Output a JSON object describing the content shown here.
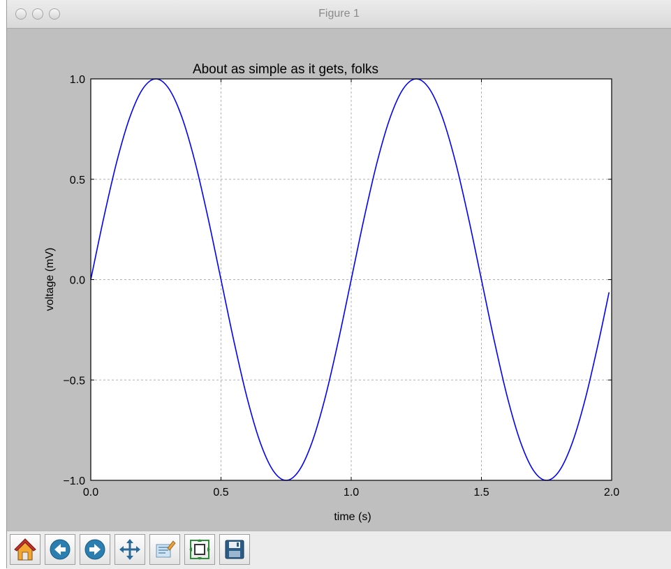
{
  "window": {
    "title": "Figure 1"
  },
  "toolbar": {
    "buttons": [
      {
        "icon": "home-icon"
      },
      {
        "icon": "back-arrow-icon"
      },
      {
        "icon": "forward-arrow-icon"
      },
      {
        "icon": "pan-move-icon"
      },
      {
        "icon": "zoom-to-rect-icon"
      },
      {
        "icon": "configure-subplots-icon"
      },
      {
        "icon": "save-figure-icon"
      }
    ]
  },
  "colors": {
    "figure_background": "#bfbfbf",
    "axes_background": "#ffffff",
    "line": "#0000ff",
    "grid": "#b0b0b0"
  },
  "chart_data": {
    "type": "line",
    "title": "About as simple as it gets, folks",
    "xlabel": "time (s)",
    "ylabel": "voltage (mV)",
    "xlim": [
      0.0,
      2.0
    ],
    "ylim": [
      -1.0,
      1.0
    ],
    "xticks": [
      "0.0",
      "0.5",
      "1.0",
      "1.5",
      "2.0"
    ],
    "yticks": [
      "1.0",
      "0.5",
      "0.0",
      "−0.5",
      "−1.0"
    ],
    "grid": true,
    "series": [
      {
        "x": [
          0.0,
          0.05,
          0.1,
          0.15,
          0.2,
          0.25,
          0.3,
          0.35,
          0.4,
          0.45,
          0.5,
          0.55,
          0.6,
          0.65,
          0.7,
          0.75,
          0.8,
          0.85,
          0.9,
          0.95,
          1.0,
          1.05,
          1.1,
          1.15,
          1.2,
          1.25,
          1.3,
          1.35,
          1.4,
          1.45,
          1.5,
          1.55,
          1.6,
          1.65,
          1.7,
          1.75,
          1.8,
          1.85,
          1.9,
          1.95,
          1.99
        ],
        "y": [
          0.0,
          0.309,
          0.588,
          0.809,
          0.951,
          1.0,
          0.951,
          0.809,
          0.588,
          0.309,
          0.0,
          -0.309,
          -0.588,
          -0.809,
          -0.951,
          -1.0,
          -0.951,
          -0.809,
          -0.588,
          -0.309,
          0.0,
          0.309,
          0.588,
          0.809,
          0.951,
          1.0,
          0.951,
          0.809,
          0.588,
          0.309,
          0.0,
          -0.309,
          -0.588,
          -0.809,
          -0.951,
          -1.0,
          -0.951,
          -0.809,
          -0.588,
          -0.309,
          -0.063
        ]
      }
    ]
  }
}
